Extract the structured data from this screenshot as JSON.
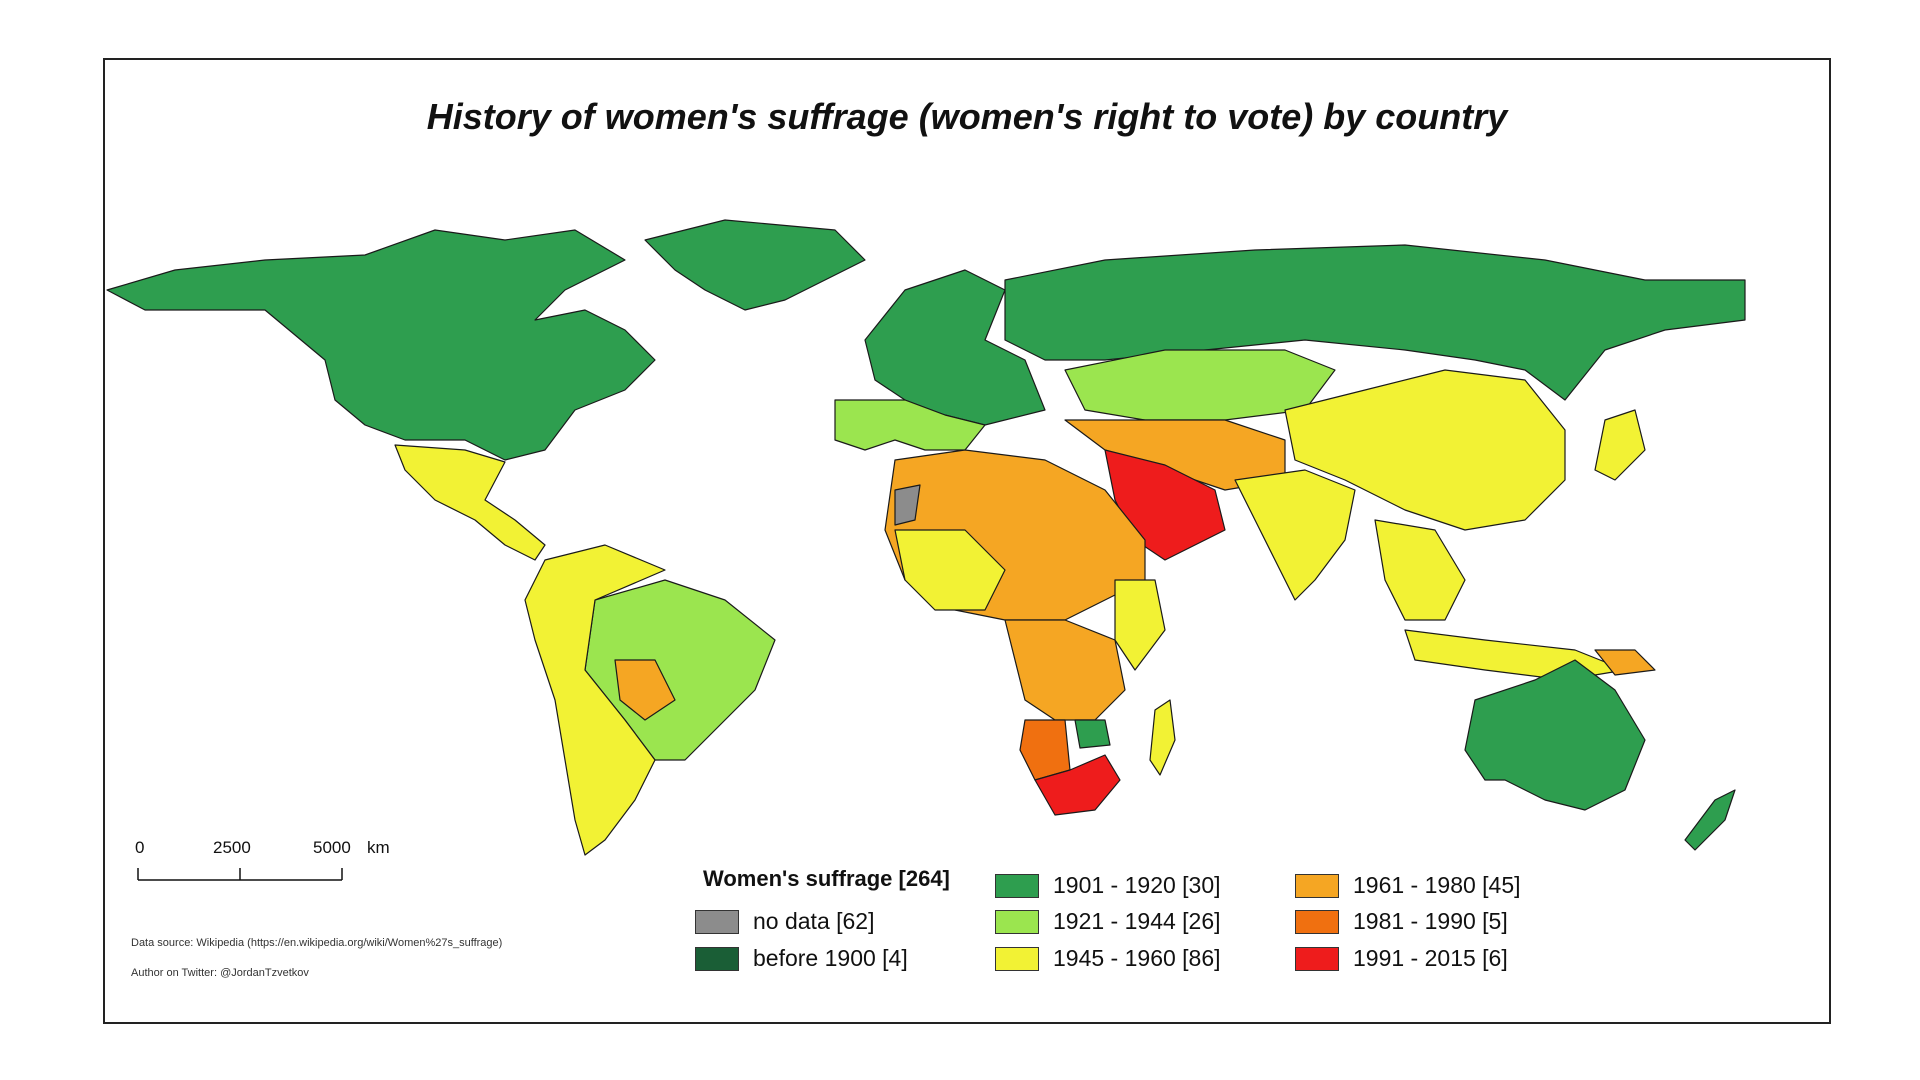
{
  "title": "History of women's suffrage (women's right to vote) by country",
  "scale": {
    "labels": [
      "0",
      "2500",
      "5000"
    ],
    "unit": "km"
  },
  "sources": {
    "data_source": "Data source: Wikipedia (https://en.wikipedia.org/wiki/Women%27s_suffrage)",
    "author": "Author on Twitter: @JordanTzvetkov"
  },
  "legend": {
    "title": "Women's suffrage [264]",
    "items": [
      {
        "label": "no data [62]",
        "color": "#8c8c8c"
      },
      {
        "label": "before 1900 [4]",
        "color": "#1a5e36"
      },
      {
        "label": "1901 - 1920 [30]",
        "color": "#2e9e4f"
      },
      {
        "label": "1921 - 1944 [26]",
        "color": "#9be54f"
      },
      {
        "label": "1945 - 1960 [86]",
        "color": "#f2f234"
      },
      {
        "label": "1961 - 1980 [45]",
        "color": "#f5a623"
      },
      {
        "label": "1981 - 1990 [5]",
        "color": "#f07010"
      },
      {
        "label": "1991 - 2015 [6]",
        "color": "#ee1c1c"
      }
    ]
  }
}
